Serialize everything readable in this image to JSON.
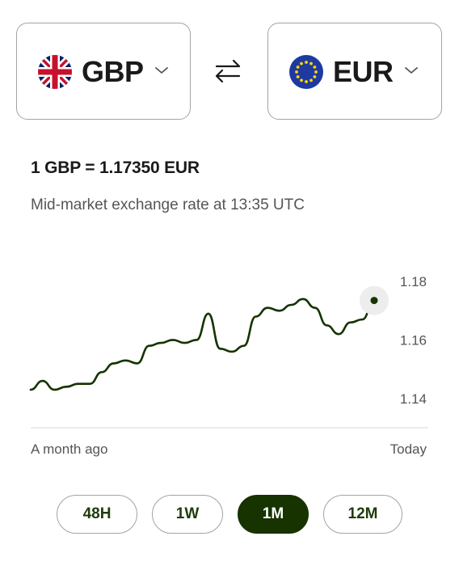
{
  "currency_from": {
    "code": "GBP",
    "flag": "uk-flag-icon"
  },
  "currency_to": {
    "code": "EUR",
    "flag": "eu-flag-icon"
  },
  "rate": {
    "headline": "1 GBP = 1.17350 EUR",
    "subtitle": "Mid-market exchange rate at 13:35 UTC"
  },
  "chart_data": {
    "type": "line",
    "ylim": [
      1.13,
      1.185
    ],
    "y_ticks": [
      "1.18",
      "1.16",
      "1.14"
    ],
    "x_labels": [
      "A month ago",
      "Today"
    ],
    "series": [
      {
        "values": [
          1.143,
          1.146,
          1.143,
          1.144,
          1.145,
          1.145,
          1.149,
          1.152,
          1.153,
          1.152,
          1.158,
          1.159,
          1.16,
          1.159,
          1.16,
          1.169,
          1.157,
          1.156,
          1.158,
          1.168,
          1.171,
          1.17,
          1.172,
          1.174,
          1.171,
          1.165,
          1.162,
          1.166,
          1.167,
          1.1735
        ]
      }
    ],
    "line_color": "#163300"
  },
  "periods": [
    {
      "label": "48H",
      "active": false
    },
    {
      "label": "1W",
      "active": false
    },
    {
      "label": "1M",
      "active": true
    },
    {
      "label": "12M",
      "active": false
    }
  ]
}
